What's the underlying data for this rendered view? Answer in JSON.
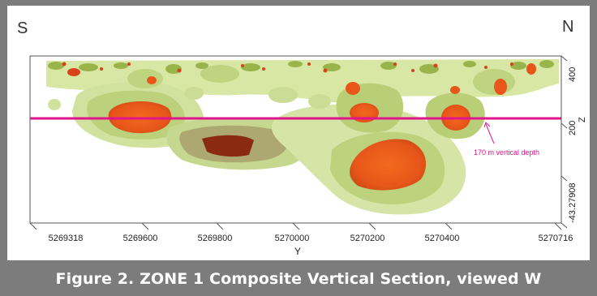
{
  "compass": {
    "left": "S",
    "right": "N"
  },
  "y_axis": {
    "label": "Y",
    "ticks": [
      "5269318",
      "5269600",
      "5269800",
      "5270000",
      "5270200",
      "5270400",
      "5270716"
    ]
  },
  "z_axis": {
    "label": "Z",
    "ticks": [
      "400",
      "200",
      "-43.27908"
    ]
  },
  "annotation": {
    "label": "170 m vertical depth"
  },
  "caption": "Figure 2. ZONE 1 Composite Vertical Section, viewed W",
  "colors": {
    "depth_line": "#e0148c",
    "outer_shell": "#c8dc8c",
    "mid_shell": "#a8c060",
    "core": "#f05a14",
    "background": "#ffffff",
    "frame": "#7c7c7c"
  }
}
